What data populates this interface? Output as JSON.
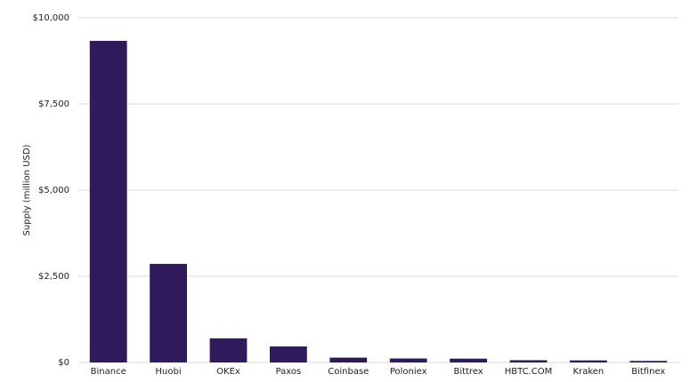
{
  "chart_data": {
    "type": "bar",
    "y_label": "Supply (million USD)",
    "categories": [
      "Binance",
      "Huobi",
      "OKEx",
      "Paxos",
      "Coinbase",
      "Poloniex",
      "Bittrex",
      "HBTC.COM",
      "Kraken",
      "Bitfinex"
    ],
    "values": [
      9330,
      2860,
      700,
      465,
      140,
      115,
      110,
      65,
      60,
      45
    ],
    "color": "#2f1a5c",
    "ylim": [
      0,
      10000
    ],
    "yticks": [
      {
        "value": 0,
        "label": "$0"
      },
      {
        "value": 2500,
        "label": "$2,500"
      },
      {
        "value": 5000,
        "label": "$5,000"
      },
      {
        "value": 7500,
        "label": "$7,500"
      },
      {
        "value": 10000,
        "label": "$10,000"
      }
    ],
    "grid": true
  }
}
